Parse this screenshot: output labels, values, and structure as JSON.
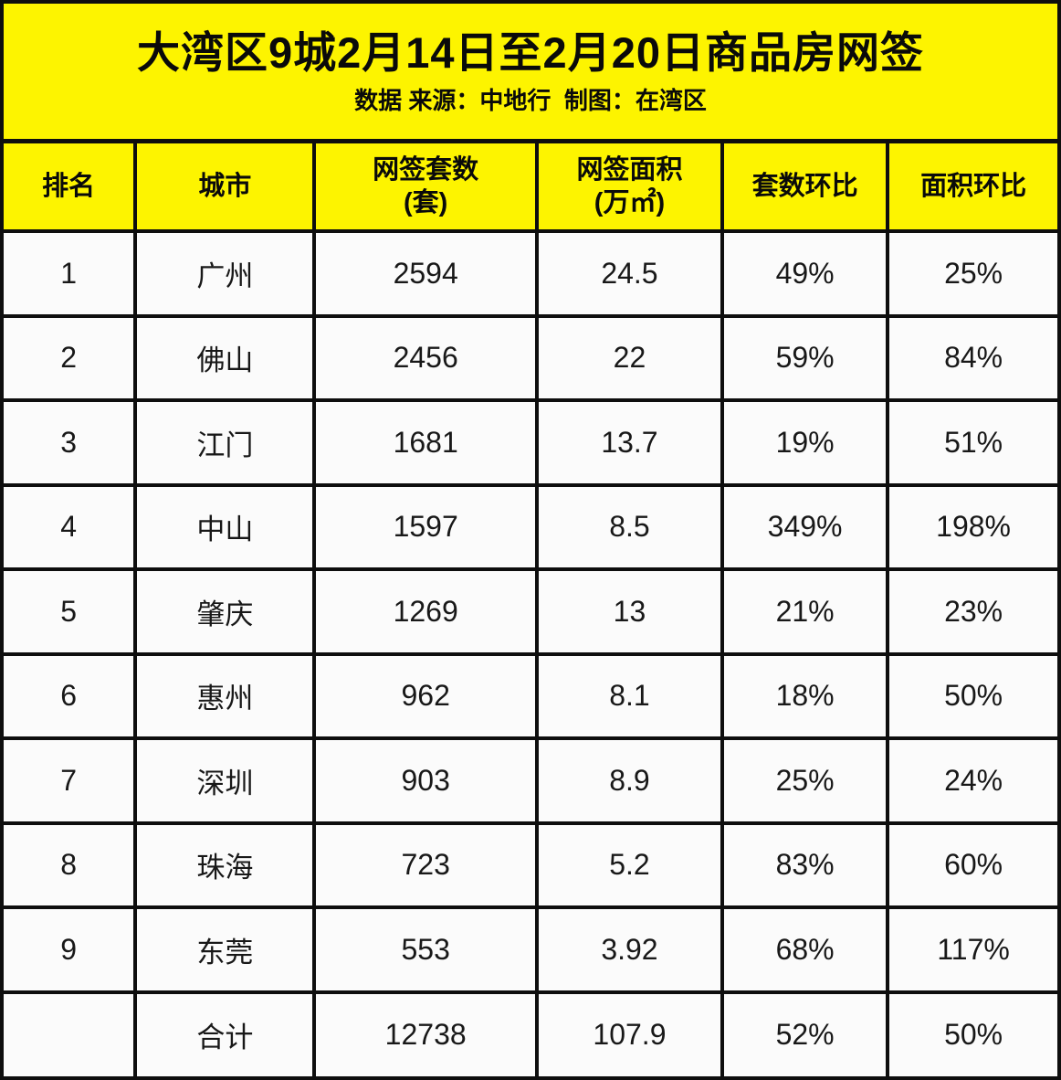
{
  "header": {
    "title": "大湾区9城2月14日至2月20日商品房网签",
    "subtitle": "数据 来源：中地行  制图：在湾区"
  },
  "table": {
    "columns": [
      {
        "label": "排名",
        "sub": ""
      },
      {
        "label": "城市",
        "sub": ""
      },
      {
        "label": "网签套数",
        "sub": "(套)"
      },
      {
        "label": "网签面积",
        "sub": "(万㎡)"
      },
      {
        "label": "套数环比",
        "sub": ""
      },
      {
        "label": "面积环比",
        "sub": ""
      }
    ],
    "rows": [
      {
        "rank": "1",
        "city": "广州",
        "units": "2594",
        "area": "24.5",
        "units_mom": "49%",
        "area_mom": "25%"
      },
      {
        "rank": "2",
        "city": "佛山",
        "units": "2456",
        "area": "22",
        "units_mom": "59%",
        "area_mom": "84%"
      },
      {
        "rank": "3",
        "city": "江门",
        "units": "1681",
        "area": "13.7",
        "units_mom": "19%",
        "area_mom": "51%"
      },
      {
        "rank": "4",
        "city": "中山",
        "units": "1597",
        "area": "8.5",
        "units_mom": "349%",
        "area_mom": "198%"
      },
      {
        "rank": "5",
        "city": "肇庆",
        "units": "1269",
        "area": "13",
        "units_mom": "21%",
        "area_mom": "23%"
      },
      {
        "rank": "6",
        "city": "惠州",
        "units": "962",
        "area": "8.1",
        "units_mom": "18%",
        "area_mom": "50%"
      },
      {
        "rank": "7",
        "city": "深圳",
        "units": "903",
        "area": "8.9",
        "units_mom": "25%",
        "area_mom": "24%"
      },
      {
        "rank": "8",
        "city": "珠海",
        "units": "723",
        "area": "5.2",
        "units_mom": "83%",
        "area_mom": "60%"
      },
      {
        "rank": "9",
        "city": "东莞",
        "units": "553",
        "area": "3.92",
        "units_mom": "68%",
        "area_mom": "117%"
      },
      {
        "rank": "",
        "city": "合计",
        "units": "12738",
        "area": "107.9",
        "units_mom": "52%",
        "area_mom": "50%"
      }
    ]
  },
  "colors": {
    "accent_yellow": "#fdf400",
    "border_black": "#0e0e0e",
    "row_background": "#fbfbfb",
    "text_black": "#0a0a0a"
  },
  "chart_data": {
    "type": "table",
    "title": "大湾区9城2月14日至2月20日商品房网签",
    "source_note": "数据 来源：中地行  制图：在湾区",
    "columns": [
      "排名",
      "城市",
      "网签套数(套)",
      "网签面积(万㎡)",
      "套数环比",
      "面积环比"
    ],
    "rows": [
      [
        1,
        "广州",
        2594,
        24.5,
        "49%",
        "25%"
      ],
      [
        2,
        "佛山",
        2456,
        22,
        "59%",
        "84%"
      ],
      [
        3,
        "江门",
        1681,
        13.7,
        "19%",
        "51%"
      ],
      [
        4,
        "中山",
        1597,
        8.5,
        "349%",
        "198%"
      ],
      [
        5,
        "肇庆",
        1269,
        13,
        "21%",
        "23%"
      ],
      [
        6,
        "惠州",
        962,
        8.1,
        "18%",
        "50%"
      ],
      [
        7,
        "深圳",
        903,
        8.9,
        "25%",
        "24%"
      ],
      [
        8,
        "珠海",
        723,
        5.2,
        "83%",
        "60%"
      ],
      [
        9,
        "东莞",
        553,
        3.92,
        "68%",
        "117%"
      ]
    ],
    "total_row": [
      "",
      "合计",
      12738,
      107.9,
      "52%",
      "50%"
    ]
  }
}
